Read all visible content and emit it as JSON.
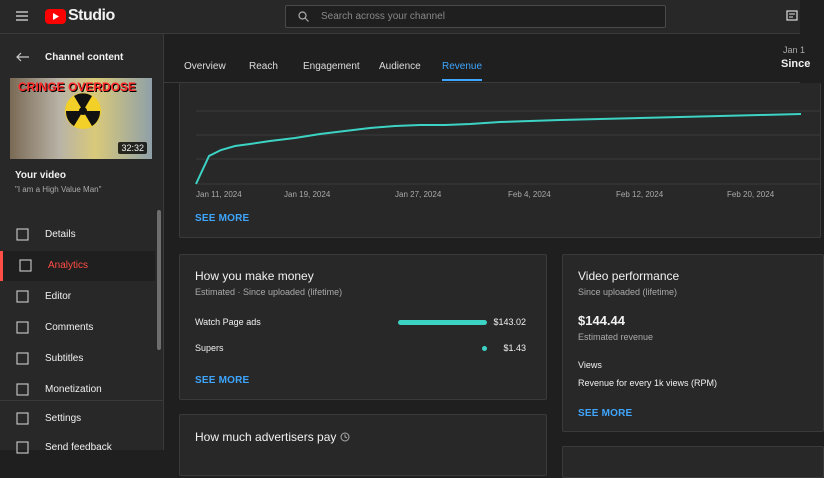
{
  "header": {
    "logo": "Studio",
    "search_placeholder": "Search across your channel"
  },
  "sidebar": {
    "back_label": "Channel content",
    "thumbnail_text": "CRINGE OVERDOSE",
    "duration": "32:32",
    "your_video": "Your video",
    "video_title": "\"I am a High Value Man\"",
    "nav": [
      "Details",
      "Analytics",
      "Editor",
      "Comments",
      "Subtitles",
      "Monetization"
    ],
    "bottom_nav": [
      "Settings",
      "Send feedback"
    ],
    "active": "Analytics"
  },
  "tabs": {
    "items": [
      "Overview",
      "Reach",
      "Engagement",
      "Audience",
      "Revenue"
    ],
    "active": "Revenue"
  },
  "date_range": {
    "range": "Jan 1",
    "label": "Since"
  },
  "revenue_chart": {
    "x_labels": [
      "Jan 11, 2024",
      "Jan 19, 2024",
      "Jan 27, 2024",
      "Feb 4, 2024",
      "Feb 12, 2024",
      "Feb 20, 2024"
    ],
    "see_more": "SEE MORE"
  },
  "how_you_make_money": {
    "title": "How you make money",
    "subtitle": "Estimated · Since uploaded (lifetime)",
    "color": "#3cd3c4",
    "rows": [
      {
        "name": "Watch Page ads",
        "value": 143.02,
        "label": "$143.02"
      },
      {
        "name": "Supers",
        "value": 1.43,
        "label": "$1.43"
      }
    ],
    "see_more": "SEE MORE"
  },
  "video_performance": {
    "title": "Video performance",
    "subtitle": "Since uploaded (lifetime)",
    "revenue": "$144.44",
    "revenue_label": "Estimated revenue",
    "views_label": "Views",
    "rpm_label": "Revenue for every 1k views (RPM)",
    "see_more": "SEE MORE"
  },
  "advertisers": {
    "title": "How much advertisers pay"
  }
}
